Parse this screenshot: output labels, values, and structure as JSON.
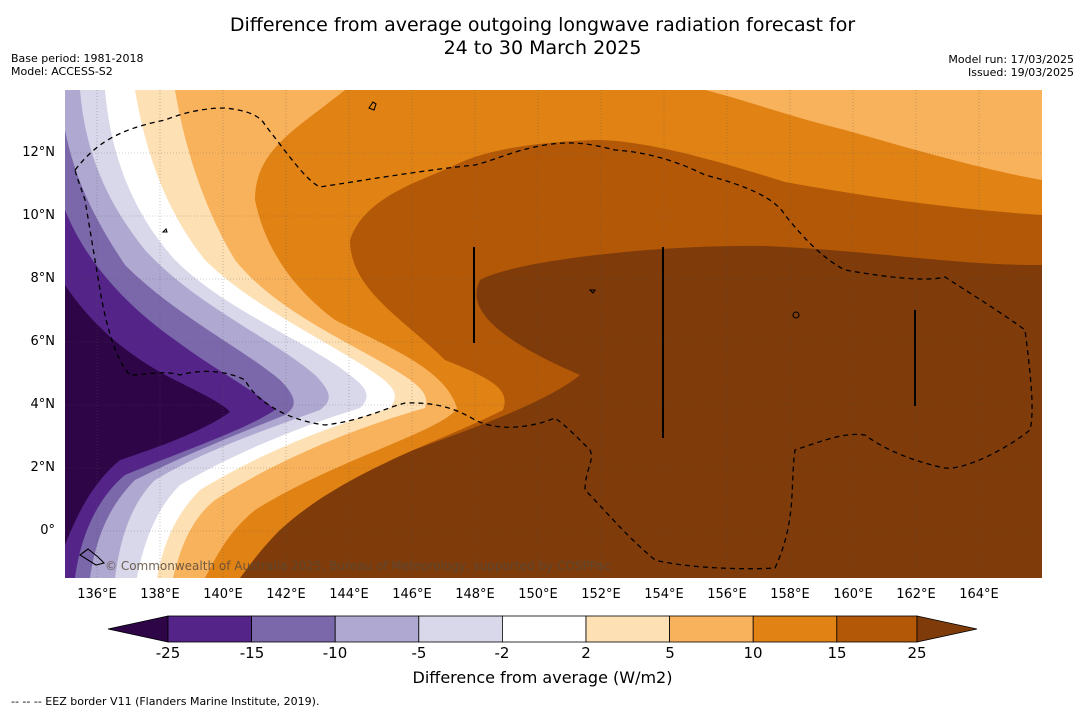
{
  "title": {
    "line1": "Difference from average outgoing longwave radiation forecast for",
    "line2": "24 to 30 March 2025"
  },
  "meta": {
    "base_period": "Base period: 1981-2018",
    "model": "Model: ACCESS-S2",
    "model_run": "Model run: 17/03/2025",
    "issued": "Issued: 19/03/2025"
  },
  "map": {
    "lon_labels": [
      "136°E",
      "138°E",
      "140°E",
      "142°E",
      "144°E",
      "146°E",
      "148°E",
      "150°E",
      "152°E",
      "154°E",
      "156°E",
      "158°E",
      "160°E",
      "162°E",
      "164°E"
    ],
    "lat_labels": [
      "12°N",
      "10°N",
      "8°N",
      "6°N",
      "4°N",
      "2°N",
      "0°"
    ],
    "copyright": "© Commonwealth of Australia 2025, Bureau of Meteorology, supported by COSPPac"
  },
  "colorbar": {
    "title": "Difference from average (W/m2)",
    "ticks": [
      "-25",
      "-15",
      "-10",
      "-5",
      "-2",
      "2",
      "5",
      "10",
      "15",
      "25"
    ],
    "colors": {
      "below_-25": "#2e0648",
      "-25_-15": "#542488",
      "-15_-10": "#7b68ab",
      "-10_-5": "#afa8d0",
      "-5_-2": "#d8d8ea",
      "-2_2": "#ffffff",
      "2_5": "#fde0b4",
      "5_10": "#f9b25c",
      "10_15": "#e08214",
      "15_25": "#b35807",
      "above_25": "#7f3c0a"
    }
  },
  "footnote": "--  --  -- EEZ border V11 (Flanders Marine Institute, 2019)."
}
